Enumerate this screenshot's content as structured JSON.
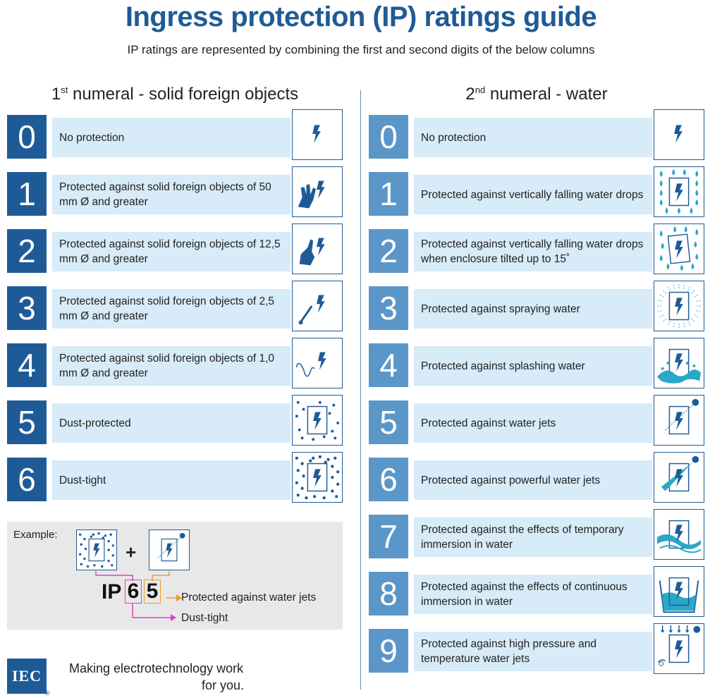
{
  "title": "Ingress protection (IP) ratings guide",
  "subtitle": "IP ratings are represented by combining the first and second digits of the below columns",
  "colors": {
    "brand_blue": "#1e5b96",
    "light_blue": "#5b96c9",
    "bar_bg": "#d7ebf8",
    "example_bg": "#e8e8e8",
    "orange": "#f29a2e",
    "magenta": "#e040c8"
  },
  "solids": {
    "heading_main_pre": "1",
    "heading_sup": "st",
    "heading_main_post": " numeral - solid foreign objects",
    "rows": [
      {
        "num": "0",
        "text": "No protection",
        "icon": "lightning-icon"
      },
      {
        "num": "1",
        "text": "Protected against solid foreign objects of 50 mm Ø and greater",
        "icon": "hand-icon"
      },
      {
        "num": "2",
        "text": "Protected against solid foreign objects of 12,5 mm Ø and greater",
        "icon": "finger-icon"
      },
      {
        "num": "3",
        "text": "Protected against solid foreign objects of 2,5 mm Ø and greater",
        "icon": "tool-icon"
      },
      {
        "num": "4",
        "text": "Protected against solid foreign objects of 1,0 mm Ø and greater",
        "icon": "wire-icon"
      },
      {
        "num": "5",
        "text": "Dust-protected",
        "icon": "dust-protected-icon"
      },
      {
        "num": "6",
        "text": "Dust-tight",
        "icon": "dust-tight-icon"
      }
    ]
  },
  "water": {
    "heading_main_pre": "2",
    "heading_sup": "nd",
    "heading_main_post": " numeral - water",
    "rows": [
      {
        "num": "0",
        "text": "No protection",
        "icon": "lightning-icon"
      },
      {
        "num": "1",
        "text": "Protected against vertically falling water drops",
        "icon": "vertical-drops-icon"
      },
      {
        "num": "2",
        "text": "Protected against vertically falling water drops when enclosure tilted up to 15˚",
        "icon": "tilted-drops-icon"
      },
      {
        "num": "3",
        "text": "Protected against spraying water",
        "icon": "spray-icon"
      },
      {
        "num": "4",
        "text": "Protected against splashing water",
        "icon": "splash-icon"
      },
      {
        "num": "5",
        "text": "Protected against water jets",
        "icon": "water-jet-icon"
      },
      {
        "num": "6",
        "text": "Protected against powerful water jets",
        "icon": "powerful-jet-icon"
      },
      {
        "num": "7",
        "text": "Protected against the effects of temporary immersion in water",
        "icon": "wave-icon"
      },
      {
        "num": "8",
        "text": "Protected against the effects of continuous immersion in water",
        "icon": "immersion-icon"
      },
      {
        "num": "9",
        "text": "Protected against high pressure and temperature water jets",
        "icon": "high-pressure-icon"
      }
    ]
  },
  "example": {
    "label": "Example:",
    "plus": "+",
    "ip": "IP",
    "first_digit": "6",
    "second_digit": "5",
    "second_meaning": "Protected against water jets",
    "first_meaning": "Dust-tight"
  },
  "footer": {
    "logo_text": "IEC",
    "registered": "®",
    "slogan_line1": "Making  electrotechnology work",
    "slogan_line2": "for you."
  }
}
